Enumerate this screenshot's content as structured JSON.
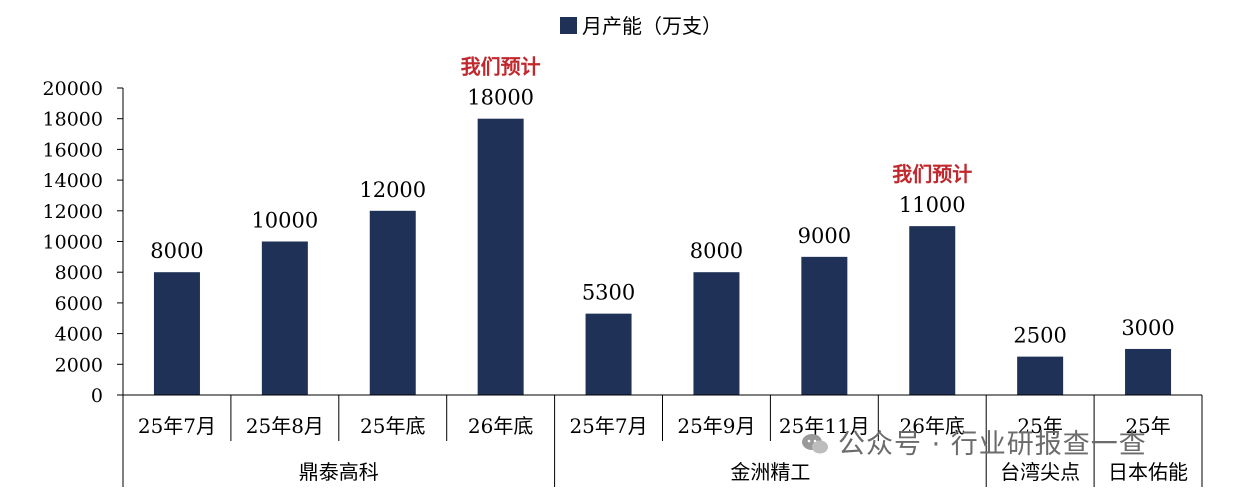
{
  "chart_data": {
    "type": "bar",
    "legend": "月产能（万支）",
    "legend_placement": "top-center",
    "color": "#1f3157",
    "ylim": [
      0,
      20000
    ],
    "yticks": [
      "0",
      "2000",
      "4000",
      "6000",
      "8000",
      "10000",
      "12000",
      "14000",
      "16000",
      "18000",
      "20000"
    ],
    "grid": false,
    "groups": [
      {
        "name": "鼎泰高科",
        "span": [
          0,
          3
        ]
      },
      {
        "name": "金洲精工",
        "span": [
          4,
          7
        ]
      },
      {
        "name": "台湾尖点",
        "span": [
          8,
          8
        ]
      },
      {
        "name": "日本佑能",
        "span": [
          9,
          9
        ]
      }
    ],
    "categories": [
      "25年7月",
      "25年8月",
      "25年底",
      "26年底",
      "25年7月",
      "25年9月",
      "25年11月",
      "26年底",
      "25年",
      "25年"
    ],
    "values": [
      8000,
      10000,
      12000,
      18000,
      5300,
      8000,
      9000,
      11000,
      2500,
      3000
    ],
    "annotations": [
      {
        "index": 3,
        "text": "我们预计"
      },
      {
        "index": 7,
        "text": "我们预计"
      }
    ]
  },
  "watermark": "公众号 · 行业研报查一查"
}
